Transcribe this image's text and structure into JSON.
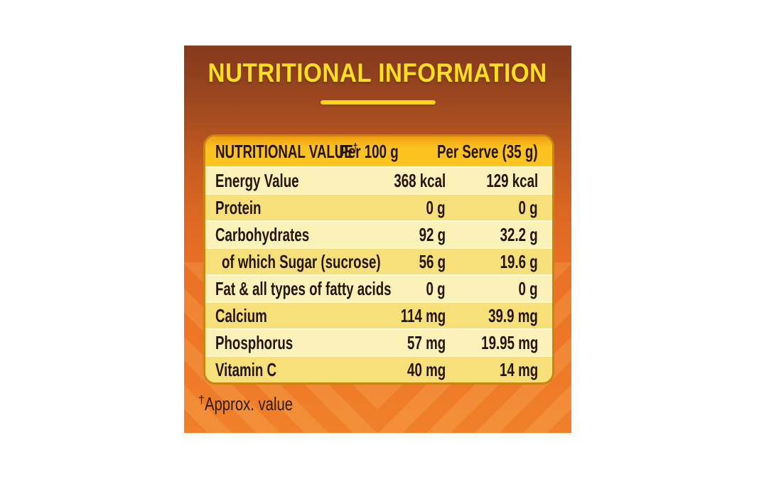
{
  "panel": {
    "title": "NUTRITIONAL INFORMATION",
    "title_color": "#ffdf1f",
    "background_top_color": "#87391e",
    "background_bottom_color": "#f08029"
  },
  "table": {
    "header": {
      "label": "NUTRITIONAL VALUE",
      "label_sup": "†",
      "col_per_100": "Per 100 g",
      "col_per_serve": "Per Serve (35 g)",
      "header_bg_color": "#fbc120"
    },
    "row_colors": {
      "cream": "#faf2b8",
      "yellow": "#f7e07a"
    },
    "rows": [
      {
        "label": "Energy Value",
        "per_100": "368 kcal",
        "per_serve": "129 kcal",
        "indent": false
      },
      {
        "label": "Protein",
        "per_100": "0 g",
        "per_serve": "0 g",
        "indent": false
      },
      {
        "label": "Carbohydrates",
        "per_100": "92 g",
        "per_serve": "32.2 g",
        "indent": false
      },
      {
        "label": "of which Sugar (sucrose)",
        "per_100": "56 g",
        "per_serve": "19.6 g",
        "indent": true
      },
      {
        "label": "Fat & all types of fatty acids",
        "per_100": "0 g",
        "per_serve": "0 g",
        "indent": false
      },
      {
        "label": "Calcium",
        "per_100": "114 mg",
        "per_serve": "39.9 mg",
        "indent": false
      },
      {
        "label": "Phosphorus",
        "per_100": "57 mg",
        "per_serve": "19.95 mg",
        "indent": false
      },
      {
        "label": "Vitamin C",
        "per_100": "40 mg",
        "per_serve": "14 mg",
        "indent": false
      }
    ]
  },
  "footnote": {
    "sup": "†",
    "text": "Approx. value"
  }
}
